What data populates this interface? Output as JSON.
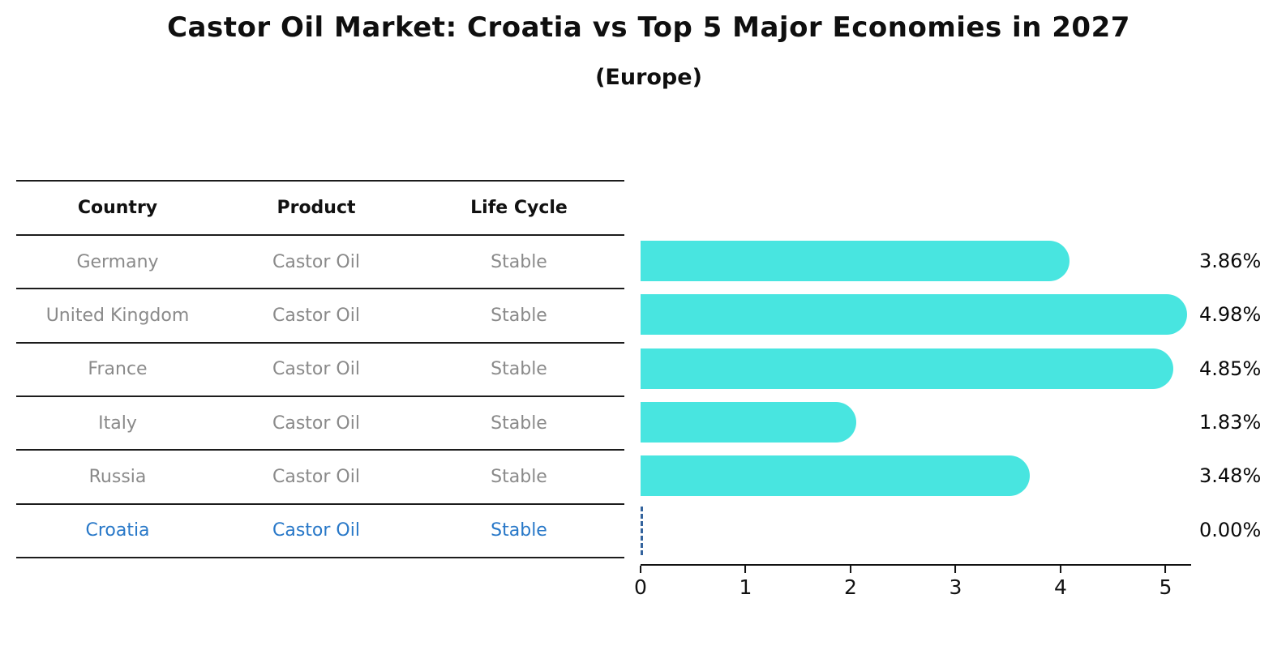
{
  "title": "Castor Oil Market: Croatia vs Top 5 Major Economies in 2027",
  "subtitle": "(Europe)",
  "colors": {
    "bar": "#48e5e0",
    "highlight_text": "#2878c8",
    "table_text": "#8a8a8a",
    "zero_marker": "#33639d",
    "axis": "#111111"
  },
  "table": {
    "headers": [
      "Country",
      "Product",
      "Life Cycle"
    ],
    "rows": [
      {
        "country": "Germany",
        "product": "Castor Oil",
        "life_cycle": "Stable",
        "highlight": false
      },
      {
        "country": "United Kingdom",
        "product": "Castor Oil",
        "life_cycle": "Stable",
        "highlight": false
      },
      {
        "country": "France",
        "product": "Castor Oil",
        "life_cycle": "Stable",
        "highlight": false
      },
      {
        "country": "Italy",
        "product": "Castor Oil",
        "life_cycle": "Stable",
        "highlight": false
      },
      {
        "country": "Russia",
        "product": "Castor Oil",
        "life_cycle": "Stable",
        "highlight": false
      },
      {
        "country": "Croatia",
        "product": "Castor Oil",
        "life_cycle": "Stable",
        "highlight": true
      }
    ]
  },
  "chart_data": {
    "type": "bar",
    "orientation": "horizontal",
    "categories": [
      "Germany",
      "United Kingdom",
      "France",
      "Italy",
      "Russia",
      "Croatia"
    ],
    "values": [
      3.86,
      4.98,
      4.85,
      1.83,
      3.48,
      0.0
    ],
    "value_labels": [
      "3.86%",
      "4.98%",
      "4.85%",
      "1.83%",
      "3.48%",
      "0.00%"
    ],
    "xticks": [
      0,
      1,
      2,
      3,
      4,
      5
    ],
    "xlim": [
      0,
      5.24
    ],
    "xlabel": "",
    "ylabel": "",
    "grid": false,
    "legend": "none",
    "title": "Castor Oil Market: Croatia vs Top 5 Major Economies in 2027 (Europe)"
  }
}
